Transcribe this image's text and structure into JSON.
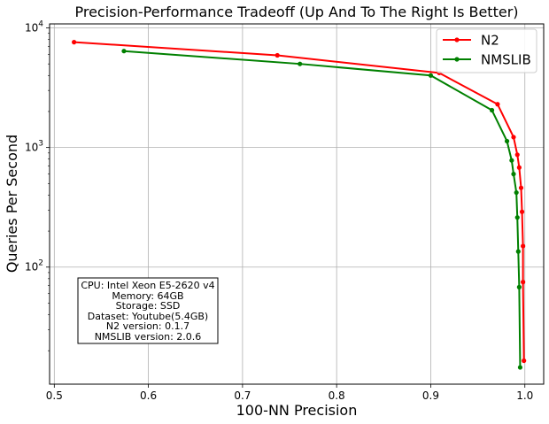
{
  "chart_data": {
    "type": "line",
    "title": "Precision-Performance Tradeoff (Up And To The Right Is Better)",
    "xlabel": "100-NN Precision",
    "ylabel": "Queries Per Second",
    "xlim": [
      0.495,
      1.02
    ],
    "ylim": [
      10.5,
      10800
    ],
    "yscale": "log",
    "grid": true,
    "legend": "top-right",
    "x_ticks": [
      {
        "value": 0.5,
        "label": "0.5"
      },
      {
        "value": 0.6,
        "label": "0.6"
      },
      {
        "value": 0.7,
        "label": "0.7"
      },
      {
        "value": 0.8,
        "label": "0.8"
      },
      {
        "value": 0.9,
        "label": "0.9"
      },
      {
        "value": 1.0,
        "label": "1.0"
      }
    ],
    "y_ticks": [
      {
        "value": 100,
        "base": "10",
        "exp": "2"
      },
      {
        "value": 1000,
        "base": "10",
        "exp": "3"
      },
      {
        "value": 10000,
        "base": "10",
        "exp": "4"
      }
    ],
    "series": [
      {
        "name": "N2",
        "color": "#ff0000",
        "points": [
          [
            0.521,
            7600
          ],
          [
            0.737,
            5900
          ],
          [
            0.909,
            4200
          ],
          [
            0.971,
            2300
          ],
          [
            0.988,
            1220
          ],
          [
            0.992,
            870
          ],
          [
            0.994,
            680
          ],
          [
            0.996,
            460
          ],
          [
            0.997,
            290
          ],
          [
            0.998,
            150
          ],
          [
            0.998,
            75
          ],
          [
            0.999,
            16.5
          ]
        ]
      },
      {
        "name": "NMSLIB",
        "color": "#008000",
        "points": [
          [
            0.574,
            6400
          ],
          [
            0.761,
            5000
          ],
          [
            0.9,
            4000
          ],
          [
            0.965,
            2050
          ],
          [
            0.981,
            1130
          ],
          [
            0.986,
            780
          ],
          [
            0.988,
            600
          ],
          [
            0.991,
            420
          ],
          [
            0.992,
            260
          ],
          [
            0.993,
            135
          ],
          [
            0.994,
            68
          ],
          [
            0.995,
            14.5
          ]
        ]
      }
    ],
    "annotation": {
      "lines": [
        "CPU: Intel Xeon E5-2620 v4",
        "Memory: 64GB",
        "Storage: SSD",
        "Dataset: Youtube(5.4GB)",
        "N2 version: 0.1.7",
        "NMSLIB version: 2.0.6"
      ]
    }
  }
}
